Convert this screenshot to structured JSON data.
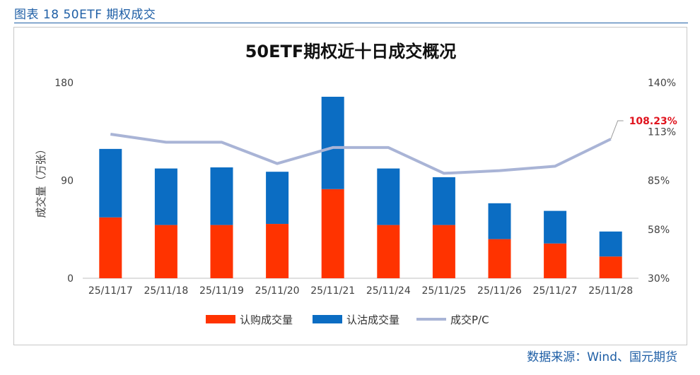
{
  "figure_title": "图表 18 50ETF 期权成交",
  "source": "数据来源：Wind、国元期货",
  "colors": {
    "call": "#ff3300",
    "put": "#0b6dc3",
    "pc_line": "#a9b4d6",
    "header": "#1f5fa6",
    "annotation": "#e0141e"
  },
  "chart_data": {
    "type": "bar",
    "title": "50ETF期权近十日成交概况",
    "ylabel": "成交量（万张）",
    "categories": [
      "25/11/17",
      "25/11/18",
      "25/11/19",
      "25/11/20",
      "25/11/21",
      "25/11/24",
      "25/11/25",
      "25/11/26",
      "25/11/27",
      "25/11/28"
    ],
    "ylim": [
      0,
      180
    ],
    "yticks": [
      "0",
      "90",
      "180"
    ],
    "y2lim": [
      30,
      140
    ],
    "y2ticks": [
      "30%",
      "58%",
      "85%",
      "113%",
      "140%"
    ],
    "stacked": true,
    "series": [
      {
        "name": "认购成交量",
        "kind": "bar",
        "values": [
          56,
          49,
          49,
          50,
          82,
          49,
          49,
          36,
          32,
          20
        ]
      },
      {
        "name": "认沽成交量",
        "kind": "bar",
        "values": [
          63,
          52,
          53,
          48,
          85,
          52,
          44,
          33,
          30,
          23
        ]
      },
      {
        "name": "成交P/C",
        "kind": "line",
        "axis": "right",
        "values": [
          111.0,
          106.5,
          106.5,
          94.5,
          103.5,
          103.5,
          89.0,
          90.5,
          93.0,
          108.23
        ]
      }
    ],
    "annotation": {
      "text": "108.23%",
      "index": 9
    },
    "grid": false,
    "legend_position": "bottom"
  }
}
